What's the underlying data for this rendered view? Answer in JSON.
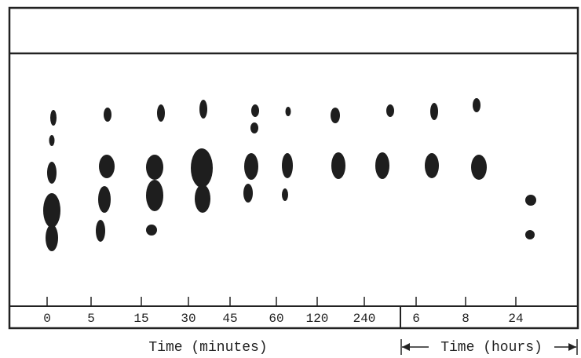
{
  "lanes": {
    "minutes": [
      "0",
      "5",
      "15",
      "30",
      "45",
      "60",
      "120",
      "240"
    ],
    "hours": [
      "6",
      "8",
      "24"
    ]
  },
  "axis_labels": {
    "minutes": "Time (minutes)",
    "hours": "Time (hours)"
  }
}
